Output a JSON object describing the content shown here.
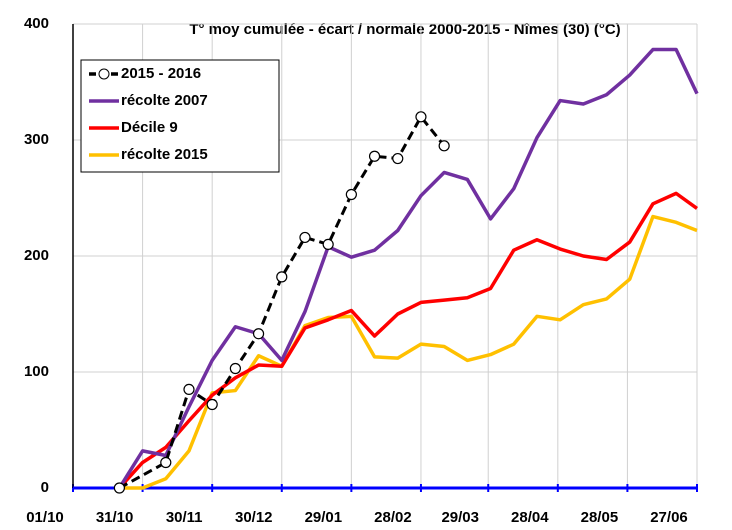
{
  "chart_data": {
    "type": "line",
    "title": "T° moy cumulée - écart / normale 2000-2015 - Nîmes (30) (°C)",
    "xlim": [
      0,
      269
    ],
    "xticks": [
      {
        "value": 0,
        "label": "01/10"
      },
      {
        "value": 30,
        "label": "31/10"
      },
      {
        "value": 60,
        "label": "30/11"
      },
      {
        "value": 90,
        "label": "30/12"
      },
      {
        "value": 120,
        "label": "29/01"
      },
      {
        "value": 150,
        "label": "28/02"
      },
      {
        "value": 179,
        "label": "29/03"
      },
      {
        "value": 209,
        "label": "28/04"
      },
      {
        "value": 239,
        "label": "28/05"
      },
      {
        "value": 269,
        "label": "27/06"
      }
    ],
    "ylim": [
      0,
      400
    ],
    "yticks": [
      0,
      100,
      200,
      300,
      400
    ],
    "grid": true,
    "legend": "upper left",
    "series": [
      {
        "name": "2015 - 2016",
        "color": "#000000",
        "dashed": true,
        "markers": true,
        "x": [
          20,
          40,
          50,
          60,
          70,
          80,
          90,
          100,
          110,
          120,
          130,
          140,
          150,
          160
        ],
        "values": [
          0,
          22,
          85,
          72,
          103,
          133,
          182,
          216,
          210,
          253,
          286,
          284,
          320,
          295
        ]
      },
      {
        "name": "récolte 2007",
        "color": "#7030a0",
        "x": [
          20,
          30,
          40,
          50,
          60,
          70,
          80,
          90,
          100,
          110,
          120,
          130,
          140,
          150,
          160,
          170,
          180,
          190,
          200,
          210,
          220,
          230,
          240,
          250,
          260,
          269
        ],
        "values": [
          0,
          32,
          28,
          70,
          110,
          139,
          133,
          110,
          152,
          208,
          199,
          205,
          222,
          252,
          272,
          266,
          232,
          258,
          302,
          334,
          331,
          339,
          356,
          378,
          378,
          340
        ]
      },
      {
        "name": "Décile 9",
        "color": "#ff0000",
        "x": [
          20,
          30,
          40,
          50,
          60,
          70,
          80,
          90,
          100,
          110,
          120,
          130,
          140,
          150,
          160,
          170,
          180,
          190,
          200,
          210,
          220,
          230,
          240,
          250,
          260,
          269
        ],
        "values": [
          0,
          22,
          35,
          58,
          80,
          95,
          106,
          105,
          138,
          145,
          153,
          131,
          150,
          160,
          162,
          164,
          172,
          205,
          214,
          206,
          200,
          197,
          212,
          245,
          254,
          241
        ]
      },
      {
        "name": "récolte 2015",
        "color": "#ffc000",
        "x": [
          20,
          30,
          40,
          50,
          60,
          70,
          80,
          90,
          100,
          110,
          120,
          130,
          140,
          150,
          160,
          170,
          180,
          190,
          200,
          210,
          220,
          230,
          240,
          250,
          260,
          269
        ],
        "values": [
          0,
          0,
          8,
          32,
          82,
          84,
          114,
          105,
          140,
          147,
          148,
          113,
          112,
          124,
          122,
          110,
          115,
          124,
          148,
          145,
          158,
          163,
          180,
          234,
          229,
          222
        ]
      }
    ]
  }
}
